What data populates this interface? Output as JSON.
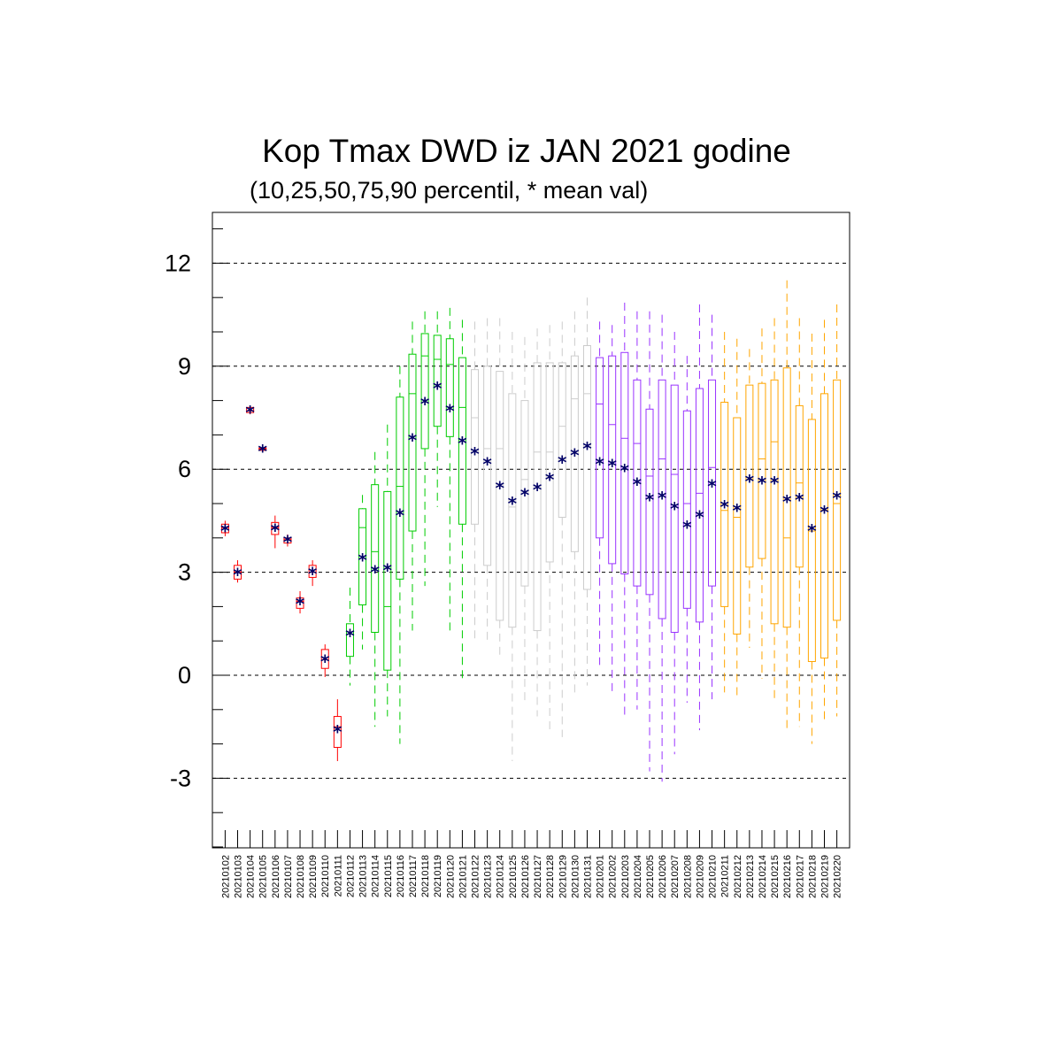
{
  "chart_data": {
    "type": "boxplot",
    "title": "Kop Tmax DWD iz JAN 2021 godine",
    "subtitle": "(10,25,50,75,90 percentil, * mean val)",
    "xlabel": "",
    "ylabel": "",
    "ylim": [
      -5,
      13.5
    ],
    "yticks": [
      -3,
      0,
      3,
      6,
      9,
      12
    ],
    "grid": "dashed horizontal at major ticks",
    "categories": [
      "20210102",
      "20210103",
      "20210104",
      "20210105",
      "20210106",
      "20210107",
      "20210108",
      "20210109",
      "20210110",
      "20210111",
      "20210112",
      "20210113",
      "20210114",
      "20210115",
      "20210116",
      "20210117",
      "20210118",
      "20210119",
      "20210120",
      "20210121",
      "20210122",
      "20210123",
      "20210124",
      "20210125",
      "20210126",
      "20210127",
      "20210128",
      "20210129",
      "20210130",
      "20210131",
      "20210201",
      "20210202",
      "20210203",
      "20210204",
      "20210205",
      "20210206",
      "20210207",
      "20210208",
      "20210209",
      "20210210",
      "20210211",
      "20210212",
      "20210213",
      "20210214",
      "20210215",
      "20210216",
      "20210217",
      "20210218",
      "20210219",
      "20210220"
    ],
    "boxes": [
      {
        "p10": 4.05,
        "p25": 4.15,
        "p50": 4.3,
        "p75": 4.4,
        "p90": 4.5,
        "mean": 4.25,
        "color": "#ff0000"
      },
      {
        "p10": 2.7,
        "p25": 2.8,
        "p50": 3.0,
        "p75": 3.2,
        "p90": 3.35,
        "mean": 2.98,
        "color": "#ff0000"
      },
      {
        "p10": 7.6,
        "p25": 7.65,
        "p50": 7.7,
        "p75": 7.8,
        "p90": 7.85,
        "mean": 7.7,
        "color": "#ff0000"
      },
      {
        "p10": 6.5,
        "p25": 6.55,
        "p50": 6.6,
        "p75": 6.62,
        "p90": 6.65,
        "mean": 6.57,
        "color": "#ff0000"
      },
      {
        "p10": 3.7,
        "p25": 4.1,
        "p50": 4.3,
        "p75": 4.45,
        "p90": 4.65,
        "mean": 4.27,
        "color": "#ff0000"
      },
      {
        "p10": 3.75,
        "p25": 3.85,
        "p50": 3.95,
        "p75": 4.0,
        "p90": 4.1,
        "mean": 3.93,
        "color": "#ff0000"
      },
      {
        "p10": 1.8,
        "p25": 1.95,
        "p50": 2.15,
        "p75": 2.25,
        "p90": 2.45,
        "mean": 2.12,
        "color": "#ff0000"
      },
      {
        "p10": 2.6,
        "p25": 2.85,
        "p50": 3.0,
        "p75": 3.2,
        "p90": 3.35,
        "mean": 3.0,
        "color": "#ff0000"
      },
      {
        "p10": -0.05,
        "p25": 0.2,
        "p50": 0.45,
        "p75": 0.75,
        "p90": 0.9,
        "mean": 0.45,
        "color": "#ff0000"
      },
      {
        "p10": -2.5,
        "p25": -2.1,
        "p50": -1.5,
        "p75": -1.2,
        "p90": -0.7,
        "mean": -1.6,
        "color": "#ff0000"
      },
      {
        "p10": -0.3,
        "p25": 0.55,
        "p50": 1.2,
        "p75": 1.5,
        "p90": 2.55,
        "mean": 1.2,
        "color": "#00cc00"
      },
      {
        "p10": 0.75,
        "p25": 2.05,
        "p50": 4.3,
        "p75": 4.85,
        "p90": 5.25,
        "mean": 3.4,
        "color": "#00cc00"
      },
      {
        "p10": -1.5,
        "p25": 1.25,
        "p50": 3.6,
        "p75": 5.55,
        "p90": 6.5,
        "mean": 3.05,
        "color": "#00cc00"
      },
      {
        "p10": -1.2,
        "p25": 0.15,
        "p50": 2.0,
        "p75": 5.35,
        "p90": 7.3,
        "mean": 3.1,
        "color": "#00cc00"
      },
      {
        "p10": -2.0,
        "p25": 2.8,
        "p50": 5.5,
        "p75": 8.1,
        "p90": 9.0,
        "mean": 4.7,
        "color": "#00cc00"
      },
      {
        "p10": 1.3,
        "p25": 4.2,
        "p50": 8.2,
        "p75": 9.35,
        "p90": 10.3,
        "mean": 6.9,
        "color": "#00cc00"
      },
      {
        "p10": 2.6,
        "p25": 6.6,
        "p50": 9.3,
        "p75": 9.95,
        "p90": 10.6,
        "mean": 7.95,
        "color": "#00cc00"
      },
      {
        "p10": 4.9,
        "p25": 7.25,
        "p50": 9.2,
        "p75": 9.9,
        "p90": 10.6,
        "mean": 8.4,
        "color": "#00cc00"
      },
      {
        "p10": 1.2,
        "p25": 6.95,
        "p50": 9.05,
        "p75": 9.8,
        "p90": 10.7,
        "mean": 7.75,
        "color": "#00cc00"
      },
      {
        "p10": -0.15,
        "p25": 4.4,
        "p50": 7.8,
        "p75": 9.25,
        "p90": 10.35,
        "mean": 6.8,
        "color": "#00cc00"
      },
      {
        "p10": 1.0,
        "p25": 4.4,
        "p50": 7.5,
        "p75": 8.9,
        "p90": 10.3,
        "mean": 6.5,
        "color": "#cccccc"
      },
      {
        "p10": 1.0,
        "p25": 3.2,
        "p50": 6.6,
        "p75": 9.0,
        "p90": 10.4,
        "mean": 6.2,
        "color": "#cccccc"
      },
      {
        "p10": 0.6,
        "p25": 1.6,
        "p50": 6.6,
        "p75": 8.85,
        "p90": 10.4,
        "mean": 5.5,
        "color": "#cccccc"
      },
      {
        "p10": -2.5,
        "p25": 1.4,
        "p50": 4.9,
        "p75": 8.2,
        "p90": 10.0,
        "mean": 5.05,
        "color": "#cccccc"
      },
      {
        "p10": -0.8,
        "p25": 2.6,
        "p50": 5.7,
        "p75": 8.0,
        "p90": 9.85,
        "mean": 5.3,
        "color": "#cccccc"
      },
      {
        "p10": -1.2,
        "p25": 1.3,
        "p50": 6.5,
        "p75": 9.1,
        "p90": 10.1,
        "mean": 5.45,
        "color": "#cccccc"
      },
      {
        "p10": -1.7,
        "p25": 3.3,
        "p50": 6.5,
        "p75": 9.1,
        "p90": 10.2,
        "mean": 5.75,
        "color": "#cccccc"
      },
      {
        "p10": -1.8,
        "p25": 4.6,
        "p50": 7.25,
        "p75": 9.1,
        "p90": 10.3,
        "mean": 6.25,
        "color": "#cccccc"
      },
      {
        "p10": -0.5,
        "p25": 3.6,
        "p50": 8.05,
        "p75": 9.3,
        "p90": 10.6,
        "mean": 6.45,
        "color": "#cccccc"
      },
      {
        "p10": -0.3,
        "p25": 2.5,
        "p50": 8.2,
        "p75": 9.6,
        "p90": 11.0,
        "mean": 6.65,
        "color": "#cccccc"
      },
      {
        "p10": 0.3,
        "p25": 4.0,
        "p50": 7.9,
        "p75": 9.25,
        "p90": 10.3,
        "mean": 6.2,
        "color": "#9933ff"
      },
      {
        "p10": -0.5,
        "p25": 3.25,
        "p50": 7.3,
        "p75": 9.3,
        "p90": 10.2,
        "mean": 6.15,
        "color": "#9933ff"
      },
      {
        "p10": -1.3,
        "p25": 2.95,
        "p50": 6.9,
        "p75": 9.4,
        "p90": 10.85,
        "mean": 6.0,
        "color": "#9933ff"
      },
      {
        "p10": -1.0,
        "p25": 2.6,
        "p50": 6.75,
        "p75": 8.6,
        "p90": 10.6,
        "mean": 5.6,
        "color": "#9933ff"
      },
      {
        "p10": -2.8,
        "p25": 2.35,
        "p50": 5.8,
        "p75": 7.75,
        "p90": 10.6,
        "mean": 5.15,
        "color": "#9933ff"
      },
      {
        "p10": -3.1,
        "p25": 1.65,
        "p50": 6.3,
        "p75": 8.6,
        "p90": 10.5,
        "mean": 5.2,
        "color": "#9933ff"
      },
      {
        "p10": -2.3,
        "p25": 1.25,
        "p50": 5.85,
        "p75": 8.45,
        "p90": 10.0,
        "mean": 4.9,
        "color": "#9933ff"
      },
      {
        "p10": -0.8,
        "p25": 1.95,
        "p50": 5.0,
        "p75": 7.7,
        "p90": 9.3,
        "mean": 4.35,
        "color": "#9933ff"
      },
      {
        "p10": -1.6,
        "p25": 1.55,
        "p50": 5.3,
        "p75": 8.35,
        "p90": 10.8,
        "mean": 4.65,
        "color": "#9933ff"
      },
      {
        "p10": -0.7,
        "p25": 2.6,
        "p50": 6.05,
        "p75": 8.6,
        "p90": 10.5,
        "mean": 5.55,
        "color": "#9933ff"
      },
      {
        "p10": -0.5,
        "p25": 2.0,
        "p50": 4.8,
        "p75": 7.95,
        "p90": 10.0,
        "mean": 4.95,
        "color": "#ffa500"
      },
      {
        "p10": -0.7,
        "p25": 1.2,
        "p50": 4.6,
        "p75": 7.5,
        "p90": 9.8,
        "mean": 4.85,
        "color": "#ffa500"
      },
      {
        "p10": 0.8,
        "p25": 3.15,
        "p50": 5.7,
        "p75": 8.45,
        "p90": 9.5,
        "mean": 5.7,
        "color": "#ffa500"
      },
      {
        "p10": -0.1,
        "p25": 3.4,
        "p50": 6.3,
        "p75": 8.5,
        "p90": 10.1,
        "mean": 5.65,
        "color": "#ffa500"
      },
      {
        "p10": -0.8,
        "p25": 1.5,
        "p50": 6.8,
        "p75": 8.6,
        "p90": 10.4,
        "mean": 5.65,
        "color": "#ffa500"
      },
      {
        "p10": -1.6,
        "p25": 1.4,
        "p50": 4.0,
        "p75": 8.95,
        "p90": 11.5,
        "mean": 5.1,
        "color": "#ffa500"
      },
      {
        "p10": -1.5,
        "p25": 3.15,
        "p50": 5.6,
        "p75": 7.85,
        "p90": 10.4,
        "mean": 5.15,
        "color": "#ffa500"
      },
      {
        "p10": -2.0,
        "p25": 0.4,
        "p50": 4.2,
        "p75": 7.45,
        "p90": 9.95,
        "mean": 4.25,
        "color": "#ffa500"
      },
      {
        "p10": -1.3,
        "p25": 0.5,
        "p50": 4.8,
        "p75": 8.2,
        "p90": 10.35,
        "mean": 4.8,
        "color": "#ffa500"
      },
      {
        "p10": -1.2,
        "p25": 1.6,
        "p50": 5.0,
        "p75": 8.6,
        "p90": 10.8,
        "mean": 5.2,
        "color": "#ffa500"
      }
    ],
    "mean_marker_color": "#000066",
    "mean_marker": "*"
  }
}
